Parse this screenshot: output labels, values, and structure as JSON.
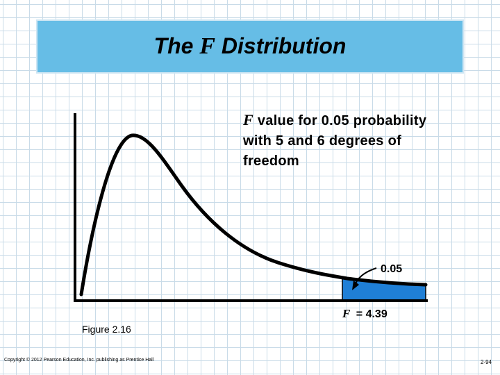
{
  "slide": {
    "title_prefix": "The",
    "title_var": "F",
    "title_suffix": "Distribution",
    "annotation_var": "F",
    "annotation_line1_rest": "value for 0.05 probability",
    "annotation_line2": "with 5 and 6 degrees of",
    "annotation_line3": "freedom",
    "tail_label": "0.05",
    "critical_var": "F",
    "critical_value_text": "= 4.39",
    "figure_caption": "Figure 2.16",
    "copyright": "Copyright © 2012 Pearson Education, Inc. publishing as Prentice Hall",
    "page_number": "2-94"
  },
  "colors": {
    "title_bg": "#66bde6",
    "tail_fill": "#1f7fd6",
    "grid": "#c9dbe8"
  }
}
